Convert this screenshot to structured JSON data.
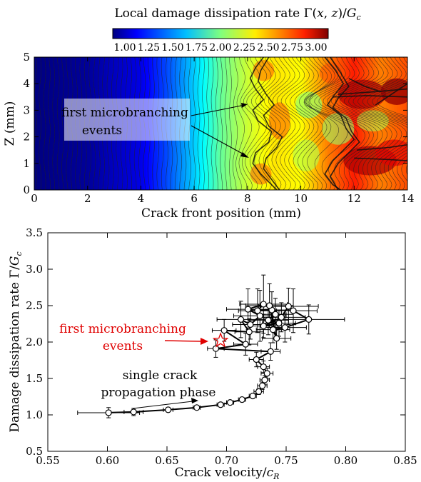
{
  "chart_data": [
    {
      "type": "heatmap",
      "title": "Local damage dissipation rate Γ(x, z)/G_c",
      "colorbar": {
        "ticks": [
          "1.00",
          "1.25",
          "1.50",
          "1.75",
          "2.00",
          "2.25",
          "2.50",
          "2.75",
          "3.00"
        ],
        "range": [
          1.0,
          3.0
        ],
        "colormap": "jet"
      },
      "xlabel": "Crack front position (mm)",
      "ylabel": "Z (mm)",
      "xlim": [
        0,
        14
      ],
      "ylim": [
        0,
        5
      ],
      "xticks": [
        "0",
        "2",
        "4",
        "6",
        "8",
        "10",
        "12",
        "14"
      ],
      "yticks": [
        "0",
        "1",
        "2",
        "3",
        "4",
        "5"
      ],
      "annotation": {
        "lines": [
          "first microbranching",
          "events"
        ]
      },
      "field_profile": {
        "x": [
          0,
          2,
          4,
          5,
          6,
          7,
          8,
          9,
          10,
          11,
          12,
          13,
          14
        ],
        "gamma": [
          1.0,
          1.05,
          1.2,
          1.4,
          1.65,
          1.95,
          2.15,
          2.3,
          2.25,
          2.5,
          2.7,
          2.5,
          2.6
        ]
      }
    },
    {
      "type": "scatter",
      "xlabel": "Crack velocity/c_R",
      "ylabel": "Damage dissipation rate Γ/G_c",
      "xlim": [
        0.55,
        0.85
      ],
      "ylim": [
        0.5,
        3.5
      ],
      "xticks": [
        "0.55",
        "0.60",
        "0.65",
        "0.70",
        "0.75",
        "0.80",
        "0.85"
      ],
      "yticks": [
        "0.5",
        "1.0",
        "1.5",
        "2.0",
        "2.5",
        "3.0",
        "3.5"
      ],
      "annotations": {
        "microbranching": {
          "lines": [
            "first microbranching",
            "events"
          ],
          "color": "#e00000"
        },
        "single_crack": {
          "lines": [
            "single crack",
            "propagation phase"
          ]
        }
      },
      "star_point": {
        "x": 0.695,
        "y": 2.02
      },
      "points": [
        {
          "x": 0.601,
          "y": 1.03,
          "xerr": 0.026,
          "yerr": 0.07
        },
        {
          "x": 0.622,
          "y": 1.04,
          "xerr": 0.008,
          "yerr": 0.05
        },
        {
          "x": 0.651,
          "y": 1.07,
          "xerr": 0.004,
          "yerr": 0.02
        },
        {
          "x": 0.675,
          "y": 1.1,
          "xerr": 0.003,
          "yerr": 0.02
        },
        {
          "x": 0.695,
          "y": 1.14,
          "xerr": 0.003,
          "yerr": 0.02
        },
        {
          "x": 0.703,
          "y": 1.17,
          "xerr": 0.003,
          "yerr": 0.02
        },
        {
          "x": 0.713,
          "y": 1.21,
          "xerr": 0.003,
          "yerr": 0.03
        },
        {
          "x": 0.722,
          "y": 1.26,
          "xerr": 0.003,
          "yerr": 0.03
        },
        {
          "x": 0.727,
          "y": 1.32,
          "xerr": 0.004,
          "yerr": 0.04
        },
        {
          "x": 0.73,
          "y": 1.4,
          "xerr": 0.004,
          "yerr": 0.05
        },
        {
          "x": 0.732,
          "y": 1.48,
          "xerr": 0.004,
          "yerr": 0.06
        },
        {
          "x": 0.734,
          "y": 1.57,
          "xerr": 0.005,
          "yerr": 0.07
        },
        {
          "x": 0.731,
          "y": 1.66,
          "xerr": 0.005,
          "yerr": 0.08
        },
        {
          "x": 0.725,
          "y": 1.76,
          "xerr": 0.006,
          "yerr": 0.1
        },
        {
          "x": 0.737,
          "y": 1.87,
          "xerr": 0.008,
          "yerr": 0.12
        },
        {
          "x": 0.691,
          "y": 1.91,
          "xerr": 0.007,
          "yerr": 0.12
        },
        {
          "x": 0.716,
          "y": 1.97,
          "xerr": 0.01,
          "yerr": 0.15
        },
        {
          "x": 0.698,
          "y": 2.16,
          "xerr": 0.01,
          "yerr": 0.15
        },
        {
          "x": 0.719,
          "y": 2.14,
          "xerr": 0.012,
          "yerr": 0.18
        },
        {
          "x": 0.712,
          "y": 2.31,
          "xerr": 0.02,
          "yerr": 0.25
        },
        {
          "x": 0.72,
          "y": 2.24,
          "xerr": 0.015,
          "yerr": 0.2
        },
        {
          "x": 0.728,
          "y": 2.36,
          "xerr": 0.022,
          "yerr": 0.35
        },
        {
          "x": 0.718,
          "y": 2.45,
          "xerr": 0.018,
          "yerr": 0.28
        },
        {
          "x": 0.731,
          "y": 2.52,
          "xerr": 0.02,
          "yerr": 0.4
        },
        {
          "x": 0.726,
          "y": 2.43,
          "xerr": 0.016,
          "yerr": 0.3
        },
        {
          "x": 0.738,
          "y": 2.44,
          "xerr": 0.018,
          "yerr": 0.25
        },
        {
          "x": 0.741,
          "y": 2.38,
          "xerr": 0.015,
          "yerr": 0.22
        },
        {
          "x": 0.735,
          "y": 2.3,
          "xerr": 0.017,
          "yerr": 0.2
        },
        {
          "x": 0.744,
          "y": 2.26,
          "xerr": 0.014,
          "yerr": 0.18
        },
        {
          "x": 0.731,
          "y": 2.22,
          "xerr": 0.012,
          "yerr": 0.16
        },
        {
          "x": 0.746,
          "y": 2.34,
          "xerr": 0.02,
          "yerr": 0.2
        },
        {
          "x": 0.752,
          "y": 2.49,
          "xerr": 0.025,
          "yerr": 0.25
        },
        {
          "x": 0.756,
          "y": 2.43,
          "xerr": 0.02,
          "yerr": 0.3
        },
        {
          "x": 0.769,
          "y": 2.31,
          "xerr": 0.03,
          "yerr": 0.2
        },
        {
          "x": 0.749,
          "y": 2.2,
          "xerr": 0.018,
          "yerr": 0.2
        },
        {
          "x": 0.739,
          "y": 2.17,
          "xerr": 0.014,
          "yerr": 0.18
        },
        {
          "x": 0.742,
          "y": 2.05,
          "xerr": 0.012,
          "yerr": 0.15
        },
        {
          "x": 0.736,
          "y": 2.5,
          "xerr": 0.02,
          "yerr": 0.3
        }
      ],
      "path_order": [
        0,
        1,
        2,
        3,
        4,
        5,
        6,
        7,
        8,
        9,
        10,
        11,
        12,
        13,
        14,
        15,
        16,
        17,
        18,
        19,
        20,
        21,
        22,
        23,
        24,
        25,
        26,
        27,
        28,
        29,
        30,
        31,
        32,
        33,
        34,
        35,
        36,
        37
      ]
    }
  ]
}
